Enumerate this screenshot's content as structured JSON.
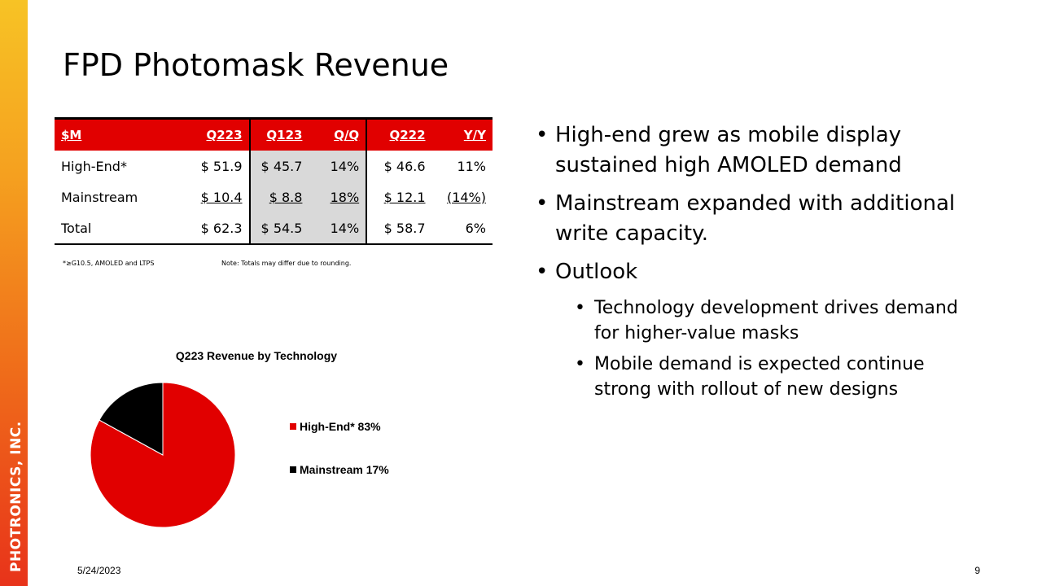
{
  "brand": {
    "side_text": "PHOTRONICS, INC.",
    "colors": {
      "accent": "#e10000",
      "gradient_top": "#f7c325",
      "gradient_bottom": "#e8331a"
    }
  },
  "title": "FPD Photomask Revenue",
  "table": {
    "headers": [
      "$M",
      "Q223",
      "Q123",
      "Q/Q",
      "Q222",
      "Y/Y"
    ],
    "rows": [
      [
        "High-End*",
        "$ 51.9",
        "$ 45.7",
        "14%",
        "$ 46.6",
        "11%"
      ],
      [
        "Mainstream",
        "$ 10.4",
        "$ 8.8",
        "18%",
        "$ 12.1",
        "(14%)"
      ],
      [
        "Total",
        "$ 62.3",
        "$ 54.5",
        "14%",
        "$ 58.7",
        "6%"
      ]
    ]
  },
  "footnotes": {
    "left": "*≥G10.5, AMOLED and LTPS",
    "right": "Note: Totals may differ due to rounding."
  },
  "bullets": {
    "b1": "High-end grew as mobile display sustained high AMOLED demand",
    "b2": "Mainstream expanded with additional write capacity.",
    "b3": "Outlook",
    "s1": "Technology development drives demand for higher-value masks",
    "s2": "Mobile demand is expected continue strong with rollout of new designs"
  },
  "chart_data": {
    "type": "pie",
    "title": "Q223 Revenue by Technology",
    "slices": [
      {
        "label": "High-End*",
        "value": 83,
        "display": "83%",
        "color": "#e10000"
      },
      {
        "label": "Mainstream",
        "value": 17,
        "display": "17%",
        "color": "#000000"
      }
    ],
    "legend": "right"
  },
  "footer": {
    "date": "5/24/2023",
    "page": "9"
  }
}
